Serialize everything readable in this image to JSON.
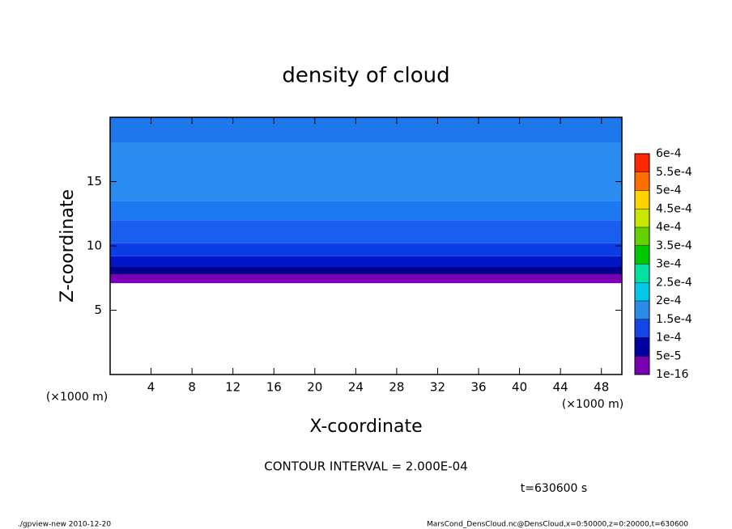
{
  "chart_data": {
    "type": "contour",
    "title": "density of cloud",
    "x_label": "X-coordinate",
    "y_label": "Z-coordinate",
    "x_unit": "(×1000 m)",
    "y_unit": "(×1000 m)",
    "xlim": [
      0,
      50
    ],
    "xticks": [
      4,
      8,
      12,
      16,
      20,
      24,
      28,
      32,
      36,
      40,
      44,
      48
    ],
    "ylim": [
      0,
      20
    ],
    "yticks": [
      5,
      10,
      15
    ],
    "layers": [
      {
        "z": [
          7.1,
          7.8
        ],
        "color": "#7b00b4"
      },
      {
        "z": [
          7.8,
          8.4
        ],
        "color": "#00008c"
      },
      {
        "z": [
          8.4,
          9.2
        ],
        "color": "#0014c8"
      },
      {
        "z": [
          9.2,
          10.2
        ],
        "color": "#0a3ce6"
      },
      {
        "z": [
          10.2,
          12.0
        ],
        "color": "#1a5ef0"
      },
      {
        "z": [
          12.0,
          13.5
        ],
        "color": "#1e78f0"
      },
      {
        "z": [
          13.5,
          18.0
        ],
        "color": "#2a8cf0"
      },
      {
        "z": [
          18.0,
          20
        ],
        "color": "#1e78ec"
      }
    ],
    "colorbar_ticks": [
      {
        "value": 1e-16,
        "label": "1e-16"
      },
      {
        "value": 5e-05,
        "label": "5e-5"
      },
      {
        "value": 0.0001,
        "label": "1e-4"
      },
      {
        "value": 0.00015,
        "label": "1.5e-4"
      },
      {
        "value": 0.0002,
        "label": "2e-4"
      },
      {
        "value": 0.00025,
        "label": "2.5e-4"
      },
      {
        "value": 0.0003,
        "label": "3e-4"
      },
      {
        "value": 0.00035,
        "label": "3.5e-4"
      },
      {
        "value": 0.0004,
        "label": "4e-4"
      },
      {
        "value": 0.00045,
        "label": "4.5e-4"
      },
      {
        "value": 0.0005,
        "label": "5e-4"
      },
      {
        "value": 0.00055,
        "label": "5.5e-4"
      },
      {
        "value": 0.0006,
        "label": "6e-4"
      }
    ],
    "colorbar_colors": [
      "#7800b0",
      "#0000a0",
      "#1446e6",
      "#2a8ce8",
      "#00c8e6",
      "#00e0a0",
      "#00c800",
      "#64d200",
      "#c8e600",
      "#ffd200",
      "#ff6e00",
      "#ff2800",
      "#ff8c8c"
    ],
    "contour_interval": "CONTOUR INTERVAL = 2.000E-04",
    "time": "t=630600 s",
    "footer_left": "./gpview-new  2010-12-20",
    "footer_right": "MarsCond_DensCloud.nc@DensCloud,x=0:50000,z=0:20000,t=630600"
  }
}
